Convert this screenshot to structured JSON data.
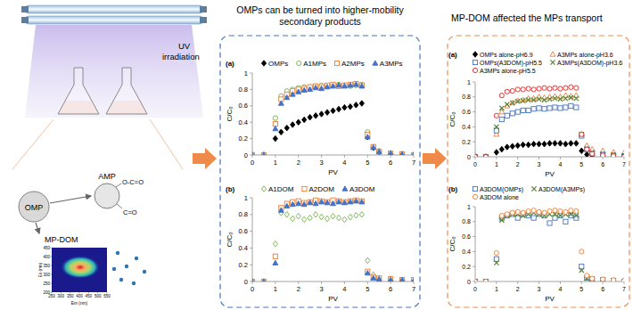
{
  "illustration": {
    "uv_label": "UV irradiation",
    "omp": "OMP",
    "amp": "AMP",
    "amp_groups": [
      "O-C=O",
      "C=O"
    ],
    "mp_dom": "MP-DOM",
    "eem": {
      "x_label": "Em (nm)",
      "y_label": "Ex (nm)",
      "xlim": [
        250,
        550
      ],
      "ylim": [
        200,
        450
      ],
      "xticks": [
        250,
        300,
        350,
        400,
        450,
        500,
        550
      ],
      "yticks": [
        200,
        250,
        300,
        350,
        400,
        450
      ]
    }
  },
  "headings": {
    "middle": "OMPs can be turned into higher-mobility secondary products",
    "right": "MP-DOM affected the MPs transport"
  },
  "chart_data": [
    {
      "type": "scatter",
      "panel": "(a)",
      "x_label": "PV",
      "y_label": "C/C₀",
      "xlim": [
        0,
        7
      ],
      "ylim": [
        0,
        1
      ],
      "xticks": [
        0,
        1,
        2,
        3,
        4,
        5,
        6,
        7
      ],
      "yticks": [
        0,
        0.2,
        0.4,
        0.6,
        0.8,
        1
      ],
      "grid": false,
      "legend": "top",
      "x": [
        0,
        0.5,
        1,
        1.25,
        1.5,
        1.75,
        2,
        2.25,
        2.5,
        2.75,
        3,
        3.25,
        3.5,
        3.75,
        4,
        4.25,
        4.5,
        4.75,
        5,
        5.25,
        5.5,
        6,
        6.5,
        7
      ],
      "series": [
        {
          "name": "OMPs",
          "color": "#000000",
          "marker": "diamond",
          "values": [
            0,
            0,
            0.2,
            0.28,
            0.33,
            0.37,
            0.4,
            0.43,
            0.46,
            0.48,
            0.5,
            0.52,
            0.54,
            0.56,
            0.58,
            0.59,
            0.61,
            0.63,
            0.22,
            0.09,
            0.04,
            0.02,
            0.01,
            0
          ]
        },
        {
          "name": "A1MPs",
          "color": "#70ad47",
          "marker": "circle-open",
          "values": [
            0,
            0,
            0.45,
            0.72,
            0.78,
            0.8,
            0.82,
            0.83,
            0.83,
            0.84,
            0.85,
            0.84,
            0.85,
            0.86,
            0.85,
            0.84,
            0.85,
            0.86,
            0.28,
            0.1,
            0.05,
            0.02,
            0.01,
            0
          ]
        },
        {
          "name": "A2MPs",
          "color": "#ed7d31",
          "marker": "square-open",
          "values": [
            0,
            0,
            0.38,
            0.68,
            0.74,
            0.78,
            0.8,
            0.81,
            0.83,
            0.84,
            0.83,
            0.85,
            0.86,
            0.84,
            0.85,
            0.86,
            0.87,
            0.85,
            0.25,
            0.1,
            0.04,
            0.02,
            0.01,
            0
          ]
        },
        {
          "name": "A3MPs",
          "color": "#4472c4",
          "marker": "triangle",
          "values": [
            0,
            0,
            0.32,
            0.63,
            0.7,
            0.74,
            0.77,
            0.79,
            0.8,
            0.82,
            0.81,
            0.83,
            0.84,
            0.85,
            0.84,
            0.85,
            0.86,
            0.84,
            0.22,
            0.09,
            0.04,
            0.02,
            0.01,
            0
          ]
        }
      ]
    },
    {
      "type": "scatter",
      "panel": "(b)",
      "x_label": "PV",
      "y_label": "C/C₀",
      "xlim": [
        0,
        7
      ],
      "ylim": [
        0,
        1
      ],
      "xticks": [
        0,
        1,
        2,
        3,
        4,
        5,
        6,
        7
      ],
      "yticks": [
        0,
        0.2,
        0.4,
        0.6,
        0.8,
        1
      ],
      "grid": false,
      "legend": "top",
      "x": [
        0,
        0.5,
        1,
        1.25,
        1.5,
        1.75,
        2,
        2.25,
        2.5,
        2.75,
        3,
        3.25,
        3.5,
        3.75,
        4,
        4.25,
        4.5,
        4.75,
        5,
        5.25,
        5.5,
        6,
        6.5,
        7
      ],
      "series": [
        {
          "name": "A1DOM",
          "color": "#70ad47",
          "marker": "diamond-open",
          "values": [
            0,
            0,
            0.45,
            0.82,
            0.8,
            0.75,
            0.78,
            0.74,
            0.76,
            0.8,
            0.77,
            0.75,
            0.78,
            0.76,
            0.74,
            0.77,
            0.79,
            0.8,
            0.25,
            0.08,
            0.04,
            0.03,
            0.02,
            0.02
          ]
        },
        {
          "name": "A2DOM",
          "color": "#ed7d31",
          "marker": "square-open",
          "values": [
            0,
            0,
            0.3,
            0.88,
            0.93,
            0.95,
            0.96,
            0.94,
            0.95,
            0.97,
            0.96,
            0.95,
            0.97,
            0.96,
            0.95,
            0.96,
            0.97,
            0.96,
            0.12,
            0.05,
            0.04,
            0.03,
            0.02,
            0.02
          ]
        },
        {
          "name": "A3DOM",
          "color": "#4472c4",
          "marker": "triangle",
          "values": [
            0,
            0,
            0.22,
            0.85,
            0.9,
            0.92,
            0.93,
            0.92,
            0.94,
            0.93,
            0.95,
            0.94,
            0.93,
            0.95,
            0.94,
            0.95,
            0.96,
            0.95,
            0.1,
            0.04,
            0.03,
            0.02,
            0.02,
            0.01
          ]
        }
      ]
    },
    {
      "type": "scatter",
      "panel": "(a)",
      "x_label": "PV",
      "y_label": "C/C₀",
      "xlim": [
        0,
        7
      ],
      "ylim": [
        0,
        1
      ],
      "xticks": [
        0,
        1,
        2,
        3,
        4,
        5,
        6,
        7
      ],
      "yticks": [
        0,
        0.2,
        0.4,
        0.6,
        0.8,
        1
      ],
      "grid": false,
      "legend": "top",
      "x": [
        0,
        0.5,
        1,
        1.25,
        1.5,
        1.75,
        2,
        2.25,
        2.5,
        2.75,
        3,
        3.25,
        3.5,
        3.75,
        4,
        4.25,
        4.5,
        4.75,
        5,
        5.25,
        5.5,
        6,
        6.5,
        7
      ],
      "series": [
        {
          "name": "OMPs alone-pH6.9",
          "color": "#000000",
          "marker": "diamond",
          "values": [
            0,
            0,
            0.06,
            0.1,
            0.13,
            0.14,
            0.15,
            0.16,
            0.16,
            0.17,
            0.17,
            0.17,
            0.18,
            0.18,
            0.18,
            0.17,
            0.18,
            0.18,
            0.08,
            0.03,
            0.02,
            0.01,
            0,
            0
          ]
        },
        {
          "name": "A3MPs alone-pH3.6",
          "color": "#ed7d31",
          "marker": "triangle-open",
          "values": [
            0,
            0,
            0.3,
            0.6,
            0.68,
            0.72,
            0.75,
            0.76,
            0.78,
            0.78,
            0.8,
            0.79,
            0.8,
            0.81,
            0.8,
            0.82,
            0.81,
            0.82,
            0.3,
            0.15,
            0.1,
            0.08,
            0.06,
            0.05
          ]
        },
        {
          "name": "OMPs(A3DOM)-pH5.5",
          "color": "#4472c4",
          "marker": "square-open",
          "values": [
            0,
            0,
            0.35,
            0.5,
            0.55,
            0.58,
            0.6,
            0.62,
            0.62,
            0.64,
            0.65,
            0.64,
            0.65,
            0.66,
            0.65,
            0.66,
            0.68,
            0.66,
            0.28,
            0.1,
            0.05,
            0.03,
            0.02,
            0.01
          ]
        },
        {
          "name": "A3MPs(A3DOM)-pH3.6",
          "color": "#548235",
          "marker": "x",
          "values": [
            0,
            0,
            0.4,
            0.65,
            0.7,
            0.72,
            0.74,
            0.75,
            0.76,
            0.76,
            0.77,
            0.76,
            0.77,
            0.78,
            0.77,
            0.78,
            0.79,
            0.78,
            0.3,
            0.1,
            0.05,
            0.03,
            0.02,
            0.01
          ]
        },
        {
          "name": "A3MPs alone-pH5.5",
          "color": "#e02020",
          "marker": "circle-open",
          "values": [
            0,
            0,
            0.55,
            0.82,
            0.87,
            0.88,
            0.9,
            0.9,
            0.91,
            0.9,
            0.91,
            0.92,
            0.91,
            0.92,
            0.91,
            0.92,
            0.93,
            0.92,
            0.3,
            0.1,
            0.04,
            0.02,
            0.01,
            0
          ]
        }
      ]
    },
    {
      "type": "scatter",
      "panel": "(b)",
      "x_label": "PV",
      "y_label": "C/C₀",
      "xlim": [
        0,
        7
      ],
      "ylim": [
        0,
        1
      ],
      "xticks": [
        0,
        1,
        2,
        3,
        4,
        5,
        6,
        7
      ],
      "yticks": [
        0,
        0.2,
        0.4,
        0.6,
        0.8,
        1
      ],
      "grid": false,
      "legend": "top",
      "x": [
        0,
        0.5,
        1,
        1.25,
        1.5,
        1.75,
        2,
        2.25,
        2.5,
        2.75,
        3,
        3.25,
        3.5,
        3.75,
        4,
        4.25,
        4.5,
        4.75,
        5,
        5.25,
        5.5,
        6,
        6.5,
        7
      ],
      "series": [
        {
          "name": "A3DOM(OMPs)",
          "color": "#4472c4",
          "marker": "square-open",
          "values": [
            0,
            0,
            0.3,
            0.85,
            0.88,
            0.9,
            0.85,
            0.9,
            0.88,
            0.85,
            0.9,
            0.88,
            0.78,
            0.85,
            0.88,
            0.8,
            0.88,
            0.85,
            0.2,
            0.05,
            0.03,
            0.02,
            0.01,
            0
          ]
        },
        {
          "name": "A3DOM(A3MPs)",
          "color": "#548235",
          "marker": "x",
          "values": [
            0,
            0,
            0.25,
            0.82,
            0.88,
            0.9,
            0.9,
            0.88,
            0.9,
            0.92,
            0.9,
            0.88,
            0.9,
            0.9,
            0.88,
            0.9,
            0.9,
            0.88,
            0.15,
            0.04,
            0.03,
            0.02,
            0.01,
            0
          ]
        },
        {
          "name": "A3DOM alone",
          "color": "#ed7d31",
          "marker": "circle-open",
          "values": [
            0,
            0,
            0.38,
            0.88,
            0.9,
            0.92,
            0.93,
            0.92,
            0.94,
            0.95,
            0.93,
            0.92,
            0.94,
            0.95,
            0.94,
            0.93,
            0.95,
            0.94,
            0.4,
            0.08,
            0.04,
            0.03,
            0.02,
            0.01
          ]
        }
      ]
    }
  ]
}
